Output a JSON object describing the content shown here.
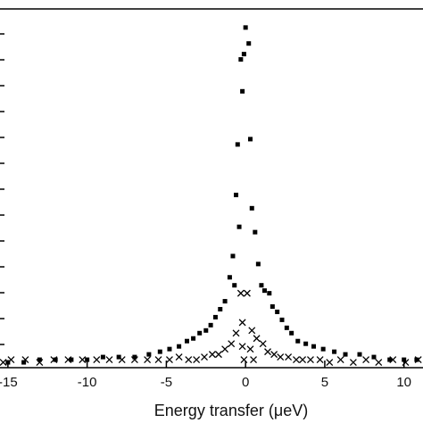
{
  "chart_data": {
    "type": "scatter",
    "xlabel": "Energy transfer (μeV)",
    "ylabel": "",
    "xlim": [
      -15.5,
      11.2
    ],
    "ylim": [
      0,
      13.5
    ],
    "x_ticks": [
      -15,
      -10,
      -5,
      0,
      5,
      10
    ],
    "x_tick_labels": [
      "-15",
      "-10",
      "-5",
      "0",
      "5",
      "10"
    ],
    "grid": false,
    "series": [
      {
        "marker": "filled-square",
        "color": "#000000",
        "points": [
          [
            0.0,
            12.8
          ],
          [
            0.2,
            12.2
          ],
          [
            -0.1,
            11.8
          ],
          [
            -0.3,
            11.6
          ],
          [
            -0.2,
            10.4
          ],
          [
            0.3,
            8.6
          ],
          [
            -0.5,
            8.4
          ],
          [
            -0.6,
            6.5
          ],
          [
            0.4,
            6.0
          ],
          [
            -0.4,
            5.3
          ],
          [
            0.6,
            5.1
          ],
          [
            -0.8,
            4.2
          ],
          [
            0.8,
            3.9
          ],
          [
            -1.0,
            3.4
          ],
          [
            -0.7,
            3.1
          ],
          [
            1.0,
            3.1
          ],
          [
            1.2,
            2.9
          ],
          [
            1.5,
            2.8
          ],
          [
            -1.3,
            2.5
          ],
          [
            1.7,
            2.3
          ],
          [
            -1.6,
            2.2
          ],
          [
            2.0,
            2.1
          ],
          [
            -1.9,
            1.9
          ],
          [
            2.3,
            1.8
          ],
          [
            -2.2,
            1.6
          ],
          [
            2.6,
            1.5
          ],
          [
            -2.5,
            1.4
          ],
          [
            2.9,
            1.3
          ],
          [
            -2.9,
            1.3
          ],
          [
            -3.3,
            1.1
          ],
          [
            3.3,
            1.0
          ],
          [
            -3.7,
            1.0
          ],
          [
            3.8,
            0.9
          ],
          [
            -4.2,
            0.8
          ],
          [
            4.3,
            0.8
          ],
          [
            -4.8,
            0.7
          ],
          [
            4.9,
            0.7
          ],
          [
            -5.4,
            0.6
          ],
          [
            5.6,
            0.6
          ],
          [
            -6.1,
            0.5
          ],
          [
            6.3,
            0.5
          ],
          [
            -7.0,
            0.4
          ],
          [
            7.2,
            0.5
          ],
          [
            -8.0,
            0.4
          ],
          [
            8.1,
            0.4
          ],
          [
            -9.0,
            0.4
          ],
          [
            9.1,
            0.3
          ],
          [
            -10.0,
            0.3
          ],
          [
            10.0,
            0.3
          ],
          [
            -11.0,
            0.3
          ],
          [
            10.8,
            0.3
          ],
          [
            -12.0,
            0.3
          ],
          [
            -13.0,
            0.3
          ],
          [
            -14.0,
            0.2
          ],
          [
            -15.0,
            0.2
          ]
        ]
      },
      {
        "marker": "cross",
        "color": "#000000",
        "points": [
          [
            -0.3,
            2.8
          ],
          [
            0.1,
            2.8
          ],
          [
            -0.2,
            1.7
          ],
          [
            0.4,
            1.4
          ],
          [
            -0.6,
            1.3
          ],
          [
            0.7,
            1.1
          ],
          [
            -0.2,
            0.8
          ],
          [
            0.3,
            0.7
          ],
          [
            -0.9,
            0.9
          ],
          [
            1.1,
            0.9
          ],
          [
            -1.3,
            0.7
          ],
          [
            1.4,
            0.6
          ],
          [
            -0.1,
            0.3
          ],
          [
            0.5,
            0.3
          ],
          [
            -1.7,
            0.5
          ],
          [
            1.8,
            0.5
          ],
          [
            -2.1,
            0.5
          ],
          [
            2.2,
            0.4
          ],
          [
            -2.6,
            0.4
          ],
          [
            2.7,
            0.4
          ],
          [
            -3.1,
            0.3
          ],
          [
            3.2,
            0.3
          ],
          [
            -3.6,
            0.3
          ],
          [
            3.6,
            0.3
          ],
          [
            -4.2,
            0.4
          ],
          [
            4.1,
            0.3
          ],
          [
            -4.8,
            0.3
          ],
          [
            4.7,
            0.3
          ],
          [
            -5.5,
            0.3
          ],
          [
            5.3,
            0.2
          ],
          [
            -6.2,
            0.3
          ],
          [
            6.0,
            0.3
          ],
          [
            -7.0,
            0.3
          ],
          [
            6.8,
            0.2
          ],
          [
            -7.8,
            0.3
          ],
          [
            7.6,
            0.3
          ],
          [
            -8.6,
            0.3
          ],
          [
            8.4,
            0.2
          ],
          [
            -9.4,
            0.3
          ],
          [
            9.3,
            0.3
          ],
          [
            -10.3,
            0.3
          ],
          [
            10.1,
            0.2
          ],
          [
            -11.2,
            0.3
          ],
          [
            10.9,
            0.3
          ],
          [
            -12.1,
            0.3
          ],
          [
            -13.0,
            0.2
          ],
          [
            -13.9,
            0.3
          ],
          [
            -14.8,
            0.3
          ],
          [
            -15.3,
            0.2
          ]
        ]
      }
    ]
  }
}
